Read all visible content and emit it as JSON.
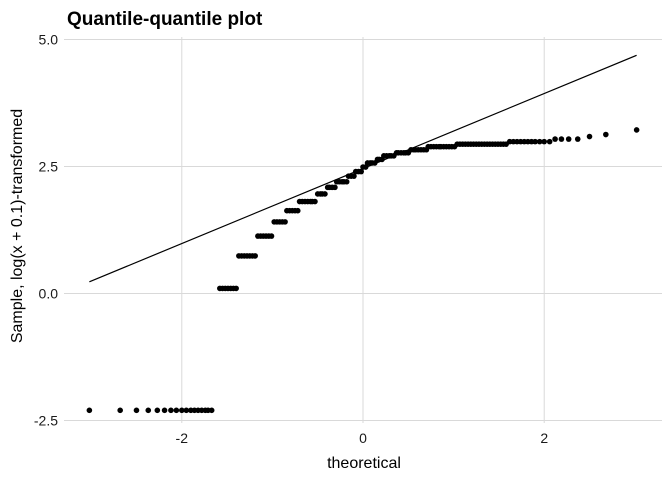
{
  "chart_data": {
    "type": "scatter",
    "title": "Quantile-quantile plot",
    "xlabel": "theoretical",
    "ylabel": "Sample, log(x + 0.1)-transformed",
    "xlim": [
      -3.3,
      3.3
    ],
    "ylim": [
      -2.55,
      5.05
    ],
    "xticks": [
      -2,
      0,
      2
    ],
    "xtick_labels": [
      "-2",
      "0",
      "2"
    ],
    "yticks": [
      -2.5,
      0,
      2.5,
      5
    ],
    "ytick_labels": [
      "-2.5",
      "0.0",
      "2.5",
      "5.0"
    ],
    "grid": true,
    "legend": "none",
    "colors": {
      "points": "#000000",
      "line": "#000000",
      "grid": "#d9d9d9"
    },
    "reference_line": {
      "x": [
        -3.02,
        3.02
      ],
      "y": [
        0.23,
        4.69
      ]
    },
    "points": [
      [
        -3.02,
        -2.3
      ],
      [
        -2.68,
        -2.3
      ],
      [
        -2.5,
        -2.3
      ],
      [
        -2.37,
        -2.3
      ],
      [
        -2.27,
        -2.3
      ],
      [
        -2.19,
        -2.3
      ],
      [
        -2.12,
        -2.3
      ],
      [
        -2.06,
        -2.3
      ],
      [
        -2.0,
        -2.3
      ],
      [
        -1.95,
        -2.3
      ],
      [
        -1.9,
        -2.3
      ],
      [
        -1.86,
        -2.3
      ],
      [
        -1.82,
        -2.3
      ],
      [
        -1.78,
        -2.3
      ],
      [
        -1.74,
        -2.3
      ],
      [
        -1.71,
        -2.3
      ],
      [
        -1.67,
        -2.3
      ],
      [
        -1.58,
        0.1
      ],
      [
        -1.55,
        0.1
      ],
      [
        -1.52,
        0.1
      ],
      [
        -1.49,
        0.1
      ],
      [
        -1.46,
        0.1
      ],
      [
        -1.43,
        0.1
      ],
      [
        -1.4,
        0.1
      ],
      [
        -1.37,
        0.74
      ],
      [
        -1.34,
        0.74
      ],
      [
        -1.31,
        0.74
      ],
      [
        -1.28,
        0.74
      ],
      [
        -1.25,
        0.74
      ],
      [
        -1.22,
        0.74
      ],
      [
        -1.19,
        0.74
      ],
      [
        -1.16,
        1.13
      ],
      [
        -1.13,
        1.13
      ],
      [
        -1.1,
        1.13
      ],
      [
        -1.07,
        1.13
      ],
      [
        -1.04,
        1.13
      ],
      [
        -1.01,
        1.13
      ],
      [
        -0.98,
        1.41
      ],
      [
        -0.95,
        1.41
      ],
      [
        -0.92,
        1.41
      ],
      [
        -0.89,
        1.41
      ],
      [
        -0.86,
        1.41
      ],
      [
        -0.84,
        1.63
      ],
      [
        -0.81,
        1.63
      ],
      [
        -0.78,
        1.63
      ],
      [
        -0.75,
        1.63
      ],
      [
        -0.72,
        1.63
      ],
      [
        -0.7,
        1.81
      ],
      [
        -0.67,
        1.81
      ],
      [
        -0.64,
        1.81
      ],
      [
        -0.61,
        1.81
      ],
      [
        -0.58,
        1.81
      ],
      [
        -0.56,
        1.81
      ],
      [
        -0.53,
        1.81
      ],
      [
        -0.5,
        1.96
      ],
      [
        -0.47,
        1.96
      ],
      [
        -0.45,
        1.96
      ],
      [
        -0.42,
        1.96
      ],
      [
        -0.39,
        2.09
      ],
      [
        -0.37,
        2.09
      ],
      [
        -0.34,
        2.09
      ],
      [
        -0.31,
        2.09
      ],
      [
        -0.29,
        2.2
      ],
      [
        -0.26,
        2.2
      ],
      [
        -0.23,
        2.2
      ],
      [
        -0.21,
        2.2
      ],
      [
        -0.18,
        2.2
      ],
      [
        -0.16,
        2.31
      ],
      [
        -0.13,
        2.31
      ],
      [
        -0.1,
        2.31
      ],
      [
        -0.08,
        2.4
      ],
      [
        -0.05,
        2.4
      ],
      [
        -0.02,
        2.4
      ],
      [
        0.0,
        2.49
      ],
      [
        0.03,
        2.49
      ],
      [
        0.05,
        2.57
      ],
      [
        0.08,
        2.57
      ],
      [
        0.1,
        2.57
      ],
      [
        0.13,
        2.57
      ],
      [
        0.16,
        2.64
      ],
      [
        0.18,
        2.64
      ],
      [
        0.21,
        2.64
      ],
      [
        0.23,
        2.71
      ],
      [
        0.26,
        2.71
      ],
      [
        0.29,
        2.71
      ],
      [
        0.31,
        2.71
      ],
      [
        0.34,
        2.71
      ],
      [
        0.37,
        2.77
      ],
      [
        0.39,
        2.77
      ],
      [
        0.42,
        2.77
      ],
      [
        0.45,
        2.77
      ],
      [
        0.47,
        2.77
      ],
      [
        0.5,
        2.77
      ],
      [
        0.53,
        2.83
      ],
      [
        0.56,
        2.83
      ],
      [
        0.58,
        2.83
      ],
      [
        0.61,
        2.83
      ],
      [
        0.64,
        2.83
      ],
      [
        0.67,
        2.83
      ],
      [
        0.7,
        2.83
      ],
      [
        0.72,
        2.89
      ],
      [
        0.75,
        2.89
      ],
      [
        0.78,
        2.89
      ],
      [
        0.81,
        2.89
      ],
      [
        0.84,
        2.89
      ],
      [
        0.86,
        2.89
      ],
      [
        0.89,
        2.89
      ],
      [
        0.92,
        2.89
      ],
      [
        0.95,
        2.89
      ],
      [
        0.98,
        2.89
      ],
      [
        1.01,
        2.89
      ],
      [
        1.04,
        2.94
      ],
      [
        1.07,
        2.94
      ],
      [
        1.1,
        2.94
      ],
      [
        1.13,
        2.94
      ],
      [
        1.16,
        2.94
      ],
      [
        1.19,
        2.94
      ],
      [
        1.22,
        2.94
      ],
      [
        1.25,
        2.94
      ],
      [
        1.28,
        2.94
      ],
      [
        1.31,
        2.94
      ],
      [
        1.34,
        2.94
      ],
      [
        1.37,
        2.94
      ],
      [
        1.4,
        2.94
      ],
      [
        1.43,
        2.94
      ],
      [
        1.46,
        2.94
      ],
      [
        1.49,
        2.94
      ],
      [
        1.52,
        2.94
      ],
      [
        1.55,
        2.94
      ],
      [
        1.58,
        2.94
      ],
      [
        1.62,
        2.99
      ],
      [
        1.66,
        2.99
      ],
      [
        1.7,
        2.99
      ],
      [
        1.74,
        2.99
      ],
      [
        1.78,
        2.99
      ],
      [
        1.82,
        2.99
      ],
      [
        1.86,
        2.99
      ],
      [
        1.9,
        2.99
      ],
      [
        1.95,
        2.99
      ],
      [
        2.0,
        2.99
      ],
      [
        2.06,
        2.99
      ],
      [
        2.12,
        3.04
      ],
      [
        2.19,
        3.04
      ],
      [
        2.27,
        3.04
      ],
      [
        2.37,
        3.04
      ],
      [
        2.5,
        3.09
      ],
      [
        2.68,
        3.13
      ],
      [
        3.02,
        3.22
      ]
    ]
  }
}
